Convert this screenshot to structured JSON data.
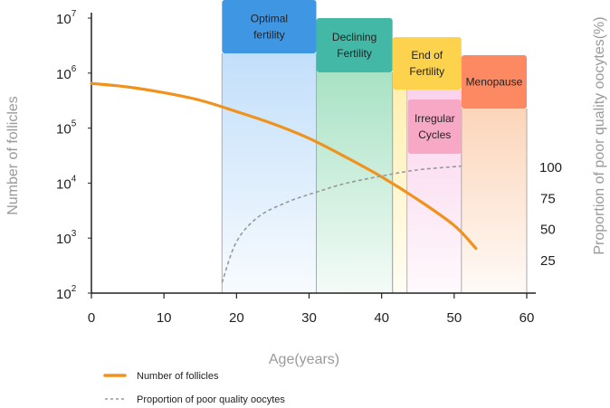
{
  "chart_data": {
    "type": "line",
    "x_axis": {
      "label": "Age(years)",
      "range": [
        0,
        60
      ],
      "ticks": [
        "0",
        "10",
        "20",
        "30",
        "40",
        "50",
        "60"
      ]
    },
    "y_axis_left": {
      "label": "Number of follicles",
      "scale": "log",
      "range": [
        100,
        10000000
      ],
      "ticks": [
        {
          "base": "10",
          "exp": "2"
        },
        {
          "base": "10",
          "exp": "3"
        },
        {
          "base": "10",
          "exp": "4"
        },
        {
          "base": "10",
          "exp": "5"
        },
        {
          "base": "10",
          "exp": "6"
        },
        {
          "base": "10",
          "exp": "7"
        }
      ]
    },
    "y_axis_right": {
      "label": "Proportion of poor quality oocytes(%)",
      "ticks": [
        "25",
        "50",
        "75",
        "100"
      ]
    },
    "series": [
      {
        "name": "Number of follicles",
        "color": "#f0931e",
        "style": "solid",
        "points": [
          [
            0,
            650000
          ],
          [
            5,
            560000
          ],
          [
            10,
            440000
          ],
          [
            15,
            320000
          ],
          [
            20,
            200000
          ],
          [
            25,
            120000
          ],
          [
            30,
            65000
          ],
          [
            35,
            30000
          ],
          [
            40,
            13000
          ],
          [
            45,
            5000
          ],
          [
            50,
            1700
          ],
          [
            53,
            650
          ]
        ]
      },
      {
        "name": "Proportion of poor quality oocytes",
        "color": "#999999",
        "style": "dashed",
        "axis": "right",
        "points": [
          [
            18,
            7
          ],
          [
            20,
            40
          ],
          [
            23,
            60
          ],
          [
            27,
            72
          ],
          [
            31,
            80
          ],
          [
            35,
            87
          ],
          [
            40,
            93
          ],
          [
            45,
            98
          ],
          [
            51,
            101
          ]
        ]
      }
    ],
    "stages": [
      {
        "label": [
          "Optimal",
          "fertility"
        ],
        "start": 18,
        "end": 31,
        "header_color": "#3f97e4",
        "fill_color": "#c2dffa"
      },
      {
        "label": [
          "Declining",
          "Fertility"
        ],
        "start": 31,
        "end": 41.5,
        "header_color": "#43b8a6",
        "fill_color": "#a8e2c4"
      },
      {
        "label": [
          "End of",
          "Fertility"
        ],
        "start": 41.5,
        "end": 43.5,
        "header_color": "#fdd34e",
        "fill_color": "#fff0b0"
      },
      {
        "label": [
          "Irregular",
          "Cycles"
        ],
        "start": 43.5,
        "end": 51,
        "header_color": "#f7a8c4",
        "fill_color": "#fad2ec"
      },
      {
        "label": [
          "Menopause"
        ],
        "start": 51,
        "end": 60,
        "header_color": "#fc8962",
        "fill_color": "#fcd5ba"
      }
    ],
    "grid": false,
    "legend_position": "bottom-left"
  }
}
